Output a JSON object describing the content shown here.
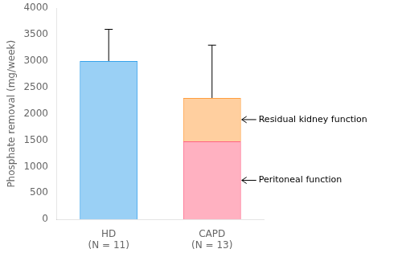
{
  "chart_data": {
    "type": "bar",
    "stacked": true,
    "categories": [
      "HD\n(N = 11)",
      "CAPD\n(N = 13)"
    ],
    "series": [
      {
        "values": [
          3000,
          null
        ],
        "error_upper": [
          600,
          null
        ]
      },
      {
        "name": "Peritoneal function",
        "values": [
          null,
          1480
        ]
      },
      {
        "name": "Residual kidney function",
        "values": [
          null,
          820
        ],
        "error_upper": [
          null,
          1000
        ]
      }
    ],
    "ylabel": "Phosphate removal (mg/week)",
    "ylim": [
      0,
      4000
    ],
    "yticks": [
      0,
      500,
      1000,
      1500,
      2000,
      2500,
      3000,
      3500,
      4000
    ],
    "grid": false
  }
}
